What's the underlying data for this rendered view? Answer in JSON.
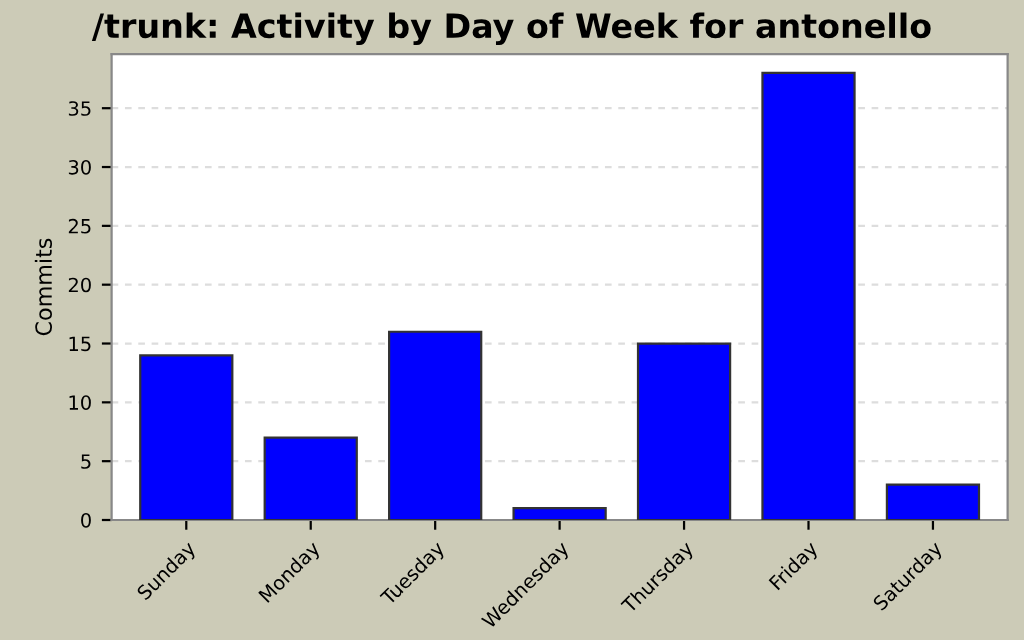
{
  "chart_data": {
    "type": "bar",
    "title": "/trunk: Activity by Day of Week for antonello",
    "ylabel": "Commits",
    "categories": [
      "Sunday",
      "Monday",
      "Tuesday",
      "Wednesday",
      "Thursday",
      "Friday",
      "Saturday"
    ],
    "values": [
      14,
      7,
      16,
      1,
      15,
      38,
      3
    ],
    "color": "#0000ff",
    "ylim": [
      0,
      39.6
    ],
    "yticks": [
      0,
      5,
      10,
      15,
      20,
      25,
      30,
      35
    ],
    "grid": "y"
  }
}
